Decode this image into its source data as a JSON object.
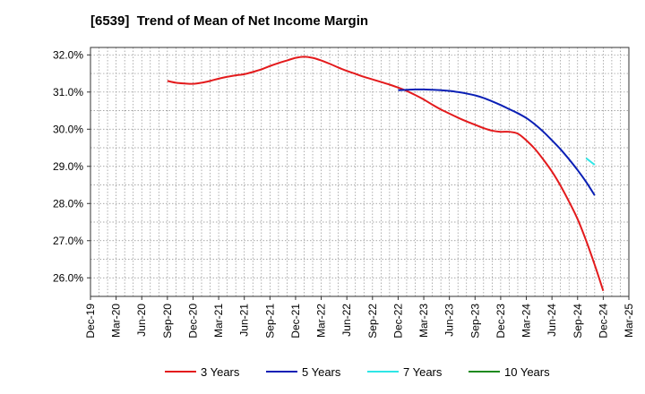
{
  "chart_data": {
    "type": "line",
    "title": "[6539]  Trend of Mean of Net Income Margin",
    "xlabel": "",
    "ylabel": "",
    "x_tick_labels": [
      "Dec-19",
      "Mar-20",
      "Jun-20",
      "Sep-20",
      "Dec-20",
      "Mar-21",
      "Jun-21",
      "Sep-21",
      "Dec-21",
      "Mar-22",
      "Jun-22",
      "Sep-22",
      "Dec-22",
      "Mar-23",
      "Jun-23",
      "Sep-23",
      "Dec-23",
      "Mar-24",
      "Jun-24",
      "Sep-24",
      "Dec-24",
      "Mar-25"
    ],
    "y_tick_labels": [
      "32.0%",
      "31.0%",
      "30.0%",
      "29.0%",
      "28.0%",
      "27.0%",
      "26.0%"
    ],
    "y_ticks": [
      32.0,
      31.0,
      30.0,
      29.0,
      28.0,
      27.0,
      26.0
    ],
    "ylim": [
      25.5,
      32.2
    ],
    "grid": true,
    "legend_position": "bottom",
    "series": [
      {
        "name": "3 Years",
        "color": "#e31a1c",
        "points": [
          [
            "Sep-20",
            31.3
          ],
          [
            "Oct-20",
            31.25
          ],
          [
            "Nov-20",
            31.23
          ],
          [
            "Dec-20",
            31.22
          ],
          [
            "Jan-21",
            31.25
          ],
          [
            "Feb-21",
            31.3
          ],
          [
            "Mar-21",
            31.36
          ],
          [
            "Apr-21",
            31.41
          ],
          [
            "May-21",
            31.45
          ],
          [
            "Jun-21",
            31.48
          ],
          [
            "Jul-21",
            31.54
          ],
          [
            "Aug-21",
            31.61
          ],
          [
            "Sep-21",
            31.7
          ],
          [
            "Oct-21",
            31.78
          ],
          [
            "Nov-21",
            31.85
          ],
          [
            "Dec-21",
            31.92
          ],
          [
            "Jan-22",
            31.95
          ],
          [
            "Feb-22",
            31.92
          ],
          [
            "Mar-22",
            31.85
          ],
          [
            "Apr-22",
            31.76
          ],
          [
            "May-22",
            31.66
          ],
          [
            "Jun-22",
            31.57
          ],
          [
            "Jul-22",
            31.49
          ],
          [
            "Aug-22",
            31.41
          ],
          [
            "Sep-22",
            31.34
          ],
          [
            "Oct-22",
            31.27
          ],
          [
            "Nov-22",
            31.2
          ],
          [
            "Dec-22",
            31.12
          ],
          [
            "Jan-23",
            31.03
          ],
          [
            "Feb-23",
            30.92
          ],
          [
            "Mar-23",
            30.8
          ],
          [
            "Apr-23",
            30.66
          ],
          [
            "May-23",
            30.53
          ],
          [
            "Jun-23",
            30.42
          ],
          [
            "Jul-23",
            30.31
          ],
          [
            "Aug-23",
            30.21
          ],
          [
            "Sep-23",
            30.12
          ],
          [
            "Oct-23",
            30.03
          ],
          [
            "Nov-23",
            29.96
          ],
          [
            "Dec-23",
            29.93
          ],
          [
            "Jan-24",
            29.93
          ],
          [
            "Feb-24",
            29.88
          ],
          [
            "Mar-24",
            29.7
          ],
          [
            "Apr-24",
            29.47
          ],
          [
            "May-24",
            29.18
          ],
          [
            "Jun-24",
            28.86
          ],
          [
            "Jul-24",
            28.48
          ],
          [
            "Aug-24",
            28.05
          ],
          [
            "Sep-24",
            27.58
          ],
          [
            "Oct-24",
            27.0
          ],
          [
            "Nov-24",
            26.35
          ],
          [
            "Dec-24",
            25.65
          ]
        ]
      },
      {
        "name": "5 Years",
        "color": "#0a1fb5",
        "points": [
          [
            "Dec-22",
            31.05
          ],
          [
            "Jan-23",
            31.06
          ],
          [
            "Feb-23",
            31.07
          ],
          [
            "Mar-23",
            31.07
          ],
          [
            "Apr-23",
            31.06
          ],
          [
            "May-23",
            31.05
          ],
          [
            "Jun-23",
            31.03
          ],
          [
            "Jul-23",
            31.0
          ],
          [
            "Aug-23",
            30.96
          ],
          [
            "Sep-23",
            30.91
          ],
          [
            "Oct-23",
            30.84
          ],
          [
            "Nov-23",
            30.75
          ],
          [
            "Dec-23",
            30.65
          ],
          [
            "Jan-24",
            30.54
          ],
          [
            "Feb-24",
            30.43
          ],
          [
            "Mar-24",
            30.3
          ],
          [
            "Apr-24",
            30.13
          ],
          [
            "May-24",
            29.93
          ],
          [
            "Jun-24",
            29.7
          ],
          [
            "Jul-24",
            29.46
          ],
          [
            "Aug-24",
            29.19
          ],
          [
            "Sep-24",
            28.9
          ],
          [
            "Oct-24",
            28.58
          ],
          [
            "Nov-24",
            28.22
          ]
        ]
      },
      {
        "name": "7 Years",
        "color": "#2ee6e6",
        "points": [
          [
            "Oct-24",
            29.22
          ],
          [
            "Nov-24",
            29.04
          ]
        ]
      },
      {
        "name": "10 Years",
        "color": "#1e8a1e",
        "points": []
      }
    ]
  }
}
